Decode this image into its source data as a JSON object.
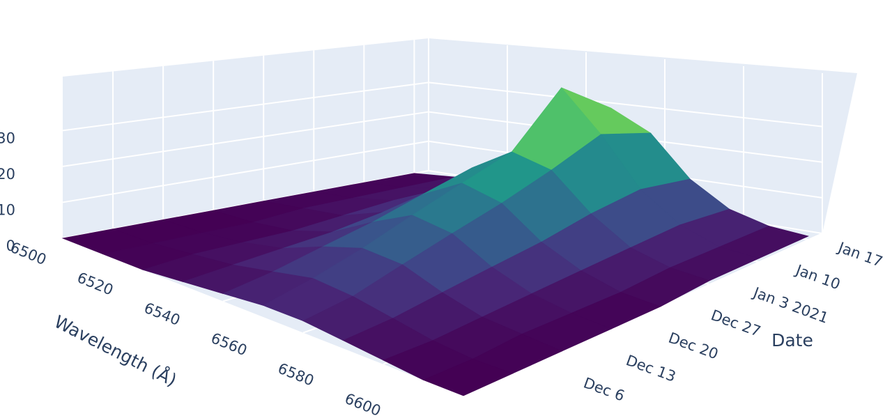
{
  "chart_data": {
    "type": "surface",
    "xaxis_title": "Wavelength (Å)",
    "yaxis_title": "Date",
    "colorscale": "Viridis",
    "x": [
      6500,
      6510,
      6520,
      6530,
      6540,
      6550,
      6560,
      6570,
      6580,
      6590,
      6600
    ],
    "y": [
      "2020-11-29",
      "2020-12-06",
      "2020-12-13",
      "2020-12-20",
      "2020-12-27",
      "2021-01-03",
      "2021-01-10",
      "2021-01-17"
    ],
    "z": [
      [
        0,
        0,
        0,
        1,
        2,
        3,
        3,
        2,
        1,
        0,
        0
      ],
      [
        0,
        0,
        1,
        2,
        4,
        6,
        5,
        3,
        1,
        0,
        0
      ],
      [
        0,
        0,
        1,
        3,
        7,
        10,
        9,
        5,
        2,
        1,
        0
      ],
      [
        0,
        0,
        1,
        4,
        10,
        15,
        13,
        7,
        3,
        1,
        0
      ],
      [
        0,
        1,
        2,
        6,
        14,
        20,
        17,
        9,
        4,
        1,
        0
      ],
      [
        0,
        1,
        3,
        8,
        18,
        25,
        22,
        12,
        5,
        2,
        1
      ],
      [
        0,
        1,
        3,
        9,
        20,
        40,
        28,
        14,
        6,
        2,
        1
      ],
      [
        0,
        1,
        3,
        8,
        18,
        30,
        24,
        12,
        5,
        2,
        1
      ]
    ],
    "xlim": [
      6500,
      6600
    ],
    "xticks": [
      6500,
      6520,
      6540,
      6560,
      6580,
      6600
    ],
    "ylim": [
      "2020-11-29",
      "2021-01-19"
    ],
    "yticks": [
      {
        "value": "2020-12-06",
        "label": "Dec 6"
      },
      {
        "value": "2020-12-13",
        "label": "Dec 13"
      },
      {
        "value": "2020-12-20",
        "label": "Dec 20"
      },
      {
        "value": "2020-12-27",
        "label": "Dec 27"
      },
      {
        "value": "2021-01-03",
        "label": "Jan 3 2021"
      },
      {
        "value": "2021-01-10",
        "label": "Jan 10"
      },
      {
        "value": "2021-01-17",
        "label": "Jan 17"
      }
    ],
    "zlim": [
      0,
      45
    ],
    "zticks": [
      0,
      10,
      20,
      30
    ],
    "grid": true
  }
}
